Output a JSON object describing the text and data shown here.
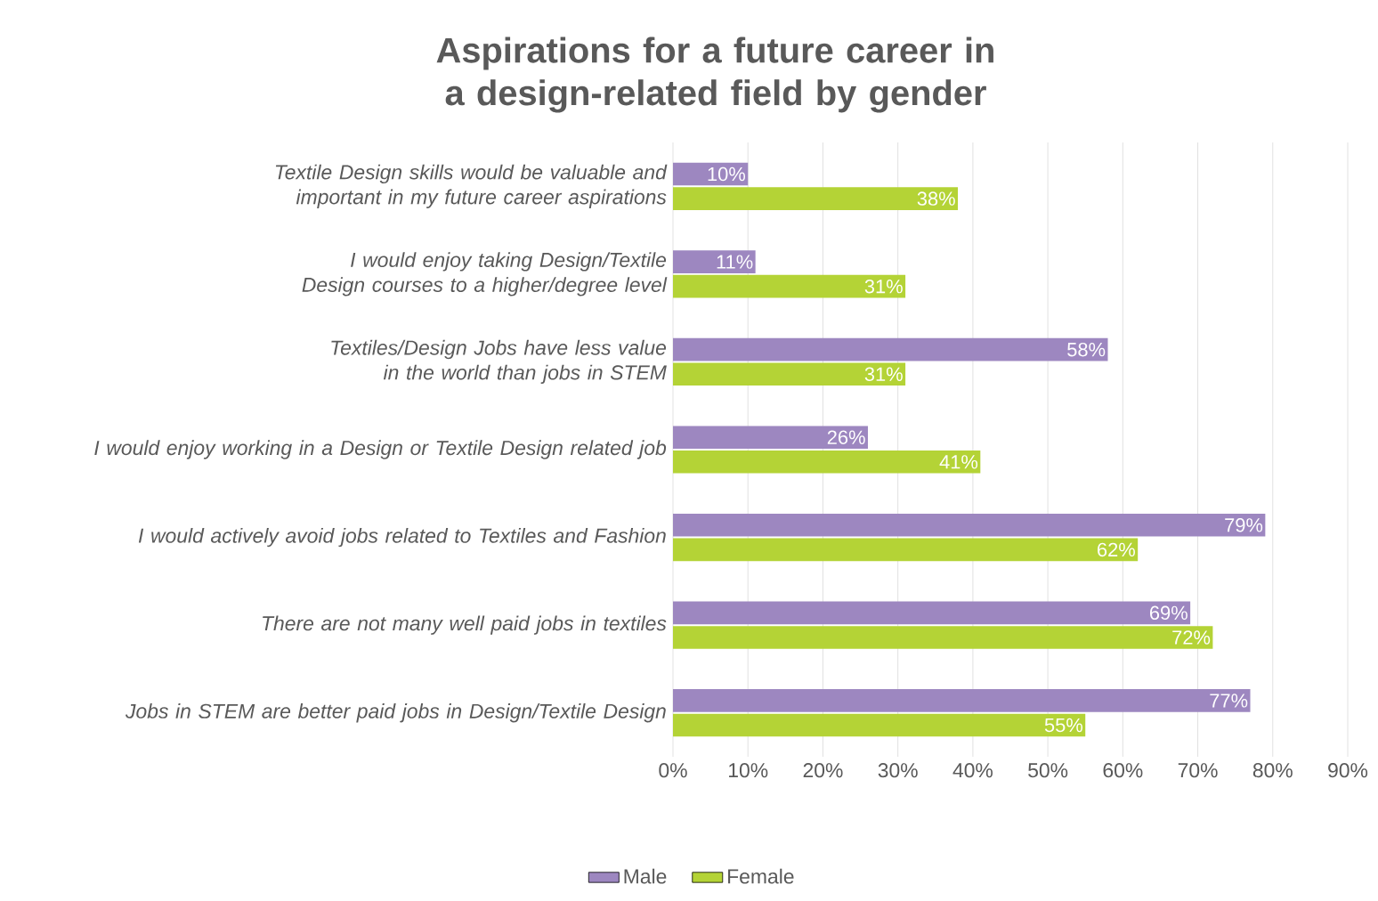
{
  "chart_data": {
    "type": "bar",
    "orientation": "horizontal",
    "title": "Aspirations for a future career in a design-related field by gender",
    "categories": [
      "Textile Design skills would be valuable and important in my future career aspirations",
      "I would enjoy taking Design/Textile Design courses to a higher/degree level",
      "Textiles/Design Jobs have less value in the world than jobs in STEM",
      "I would enjoy working in a Design or Textile Design related job",
      "I would actively avoid jobs related to Textiles and Fashion",
      "There are not many well paid jobs in textiles",
      "Jobs in STEM are better paid jobs in Design/Textile Design"
    ],
    "series": [
      {
        "name": "Male",
        "color": "#9d87c0",
        "values": [
          10,
          11,
          58,
          26,
          79,
          69,
          77
        ],
        "value_labels": [
          "10%",
          "11%",
          "58%",
          "26%",
          "79%",
          "69%",
          "77%"
        ]
      },
      {
        "name": "Female",
        "color": "#b4d336",
        "values": [
          38,
          31,
          31,
          41,
          62,
          72,
          55
        ],
        "value_labels": [
          "38%",
          "31%",
          "31%",
          "41%",
          "62%",
          "72%",
          "55%"
        ]
      }
    ],
    "xlim": [
      0,
      90
    ],
    "xticks": [
      {
        "value": 0,
        "label": "0%"
      },
      {
        "value": 10,
        "label": "10%"
      },
      {
        "value": 20,
        "label": "20%"
      },
      {
        "value": 30,
        "label": "30%"
      },
      {
        "value": 40,
        "label": "40%"
      },
      {
        "value": 50,
        "label": "50%"
      },
      {
        "value": 60,
        "label": "60%"
      },
      {
        "value": 70,
        "label": "70%"
      },
      {
        "value": 80,
        "label": "80%"
      },
      {
        "value": 90,
        "label": "90%"
      }
    ],
    "grid": "x",
    "legend": "bottom"
  }
}
